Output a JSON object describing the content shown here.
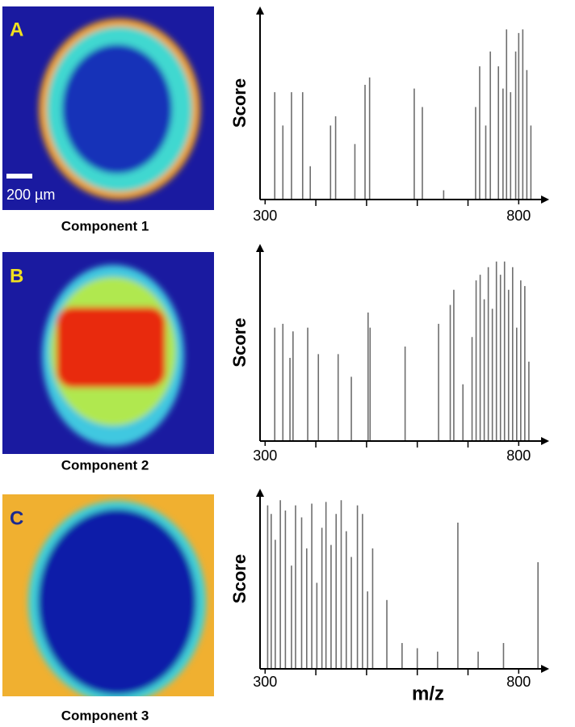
{
  "chart_data": [
    {
      "type": "bar",
      "panel_label": "A",
      "caption": "Component 1",
      "scale_bar_label": "200 µm",
      "y_label": "Score",
      "xlim": [
        290,
        860
      ],
      "ylim": [
        0,
        1
      ],
      "xticks": [
        300,
        800
      ],
      "minor_xticks": [
        400,
        500,
        600,
        700
      ],
      "color": "#6e6e6e",
      "x": [
        319,
        335,
        352,
        374,
        389,
        429,
        439,
        477,
        497,
        506,
        594,
        610,
        652,
        715,
        723,
        735,
        744,
        760,
        769,
        776,
        784,
        794,
        800,
        808,
        816,
        824
      ],
      "values": [
        0.58,
        0.4,
        0.58,
        0.58,
        0.18,
        0.4,
        0.45,
        0.3,
        0.62,
        0.66,
        0.6,
        0.5,
        0.05,
        0.5,
        0.72,
        0.4,
        0.8,
        0.72,
        0.6,
        0.92,
        0.58,
        0.8,
        0.9,
        0.92,
        0.7,
        0.4
      ]
    },
    {
      "type": "bar",
      "panel_label": "B",
      "caption": "Component 2",
      "y_label": "Score",
      "xlim": [
        290,
        860
      ],
      "ylim": [
        0,
        1
      ],
      "xticks": [
        300,
        800
      ],
      "minor_xticks": [
        400,
        500,
        600,
        700
      ],
      "color": "#6e6e6e",
      "x": [
        319,
        335,
        349,
        355,
        384,
        405,
        444,
        470,
        503,
        507,
        576,
        642,
        665,
        672,
        690,
        708,
        716,
        724,
        732,
        740,
        748,
        756,
        764,
        772,
        780,
        788,
        796,
        804,
        812,
        820
      ],
      "values": [
        0.6,
        0.62,
        0.44,
        0.58,
        0.6,
        0.46,
        0.46,
        0.34,
        0.68,
        0.6,
        0.5,
        0.62,
        0.72,
        0.8,
        0.3,
        0.55,
        0.85,
        0.88,
        0.75,
        0.92,
        0.7,
        0.95,
        0.88,
        0.95,
        0.8,
        0.92,
        0.6,
        0.85,
        0.82,
        0.42
      ]
    },
    {
      "type": "bar",
      "panel_label": "C",
      "caption": "Component 3",
      "y_label": "Score",
      "x_label": "m/z",
      "xlim": [
        290,
        860
      ],
      "ylim": [
        0,
        1
      ],
      "xticks": [
        300,
        800
      ],
      "minor_xticks": [
        400,
        500,
        600,
        700
      ],
      "color": "#6e6e6e",
      "x": [
        305,
        312,
        320,
        330,
        340,
        352,
        360,
        372,
        382,
        392,
        402,
        412,
        420,
        430,
        440,
        450,
        460,
        470,
        482,
        492,
        502,
        512,
        540,
        570,
        600,
        640,
        680,
        720,
        770,
        838
      ],
      "values": [
        0.95,
        0.9,
        0.75,
        0.98,
        0.92,
        0.6,
        0.95,
        0.88,
        0.7,
        0.96,
        0.5,
        0.82,
        0.97,
        0.72,
        0.9,
        0.98,
        0.8,
        0.65,
        0.95,
        0.9,
        0.45,
        0.7,
        0.4,
        0.15,
        0.12,
        0.1,
        0.85,
        0.1,
        0.15,
        0.62
      ]
    }
  ]
}
